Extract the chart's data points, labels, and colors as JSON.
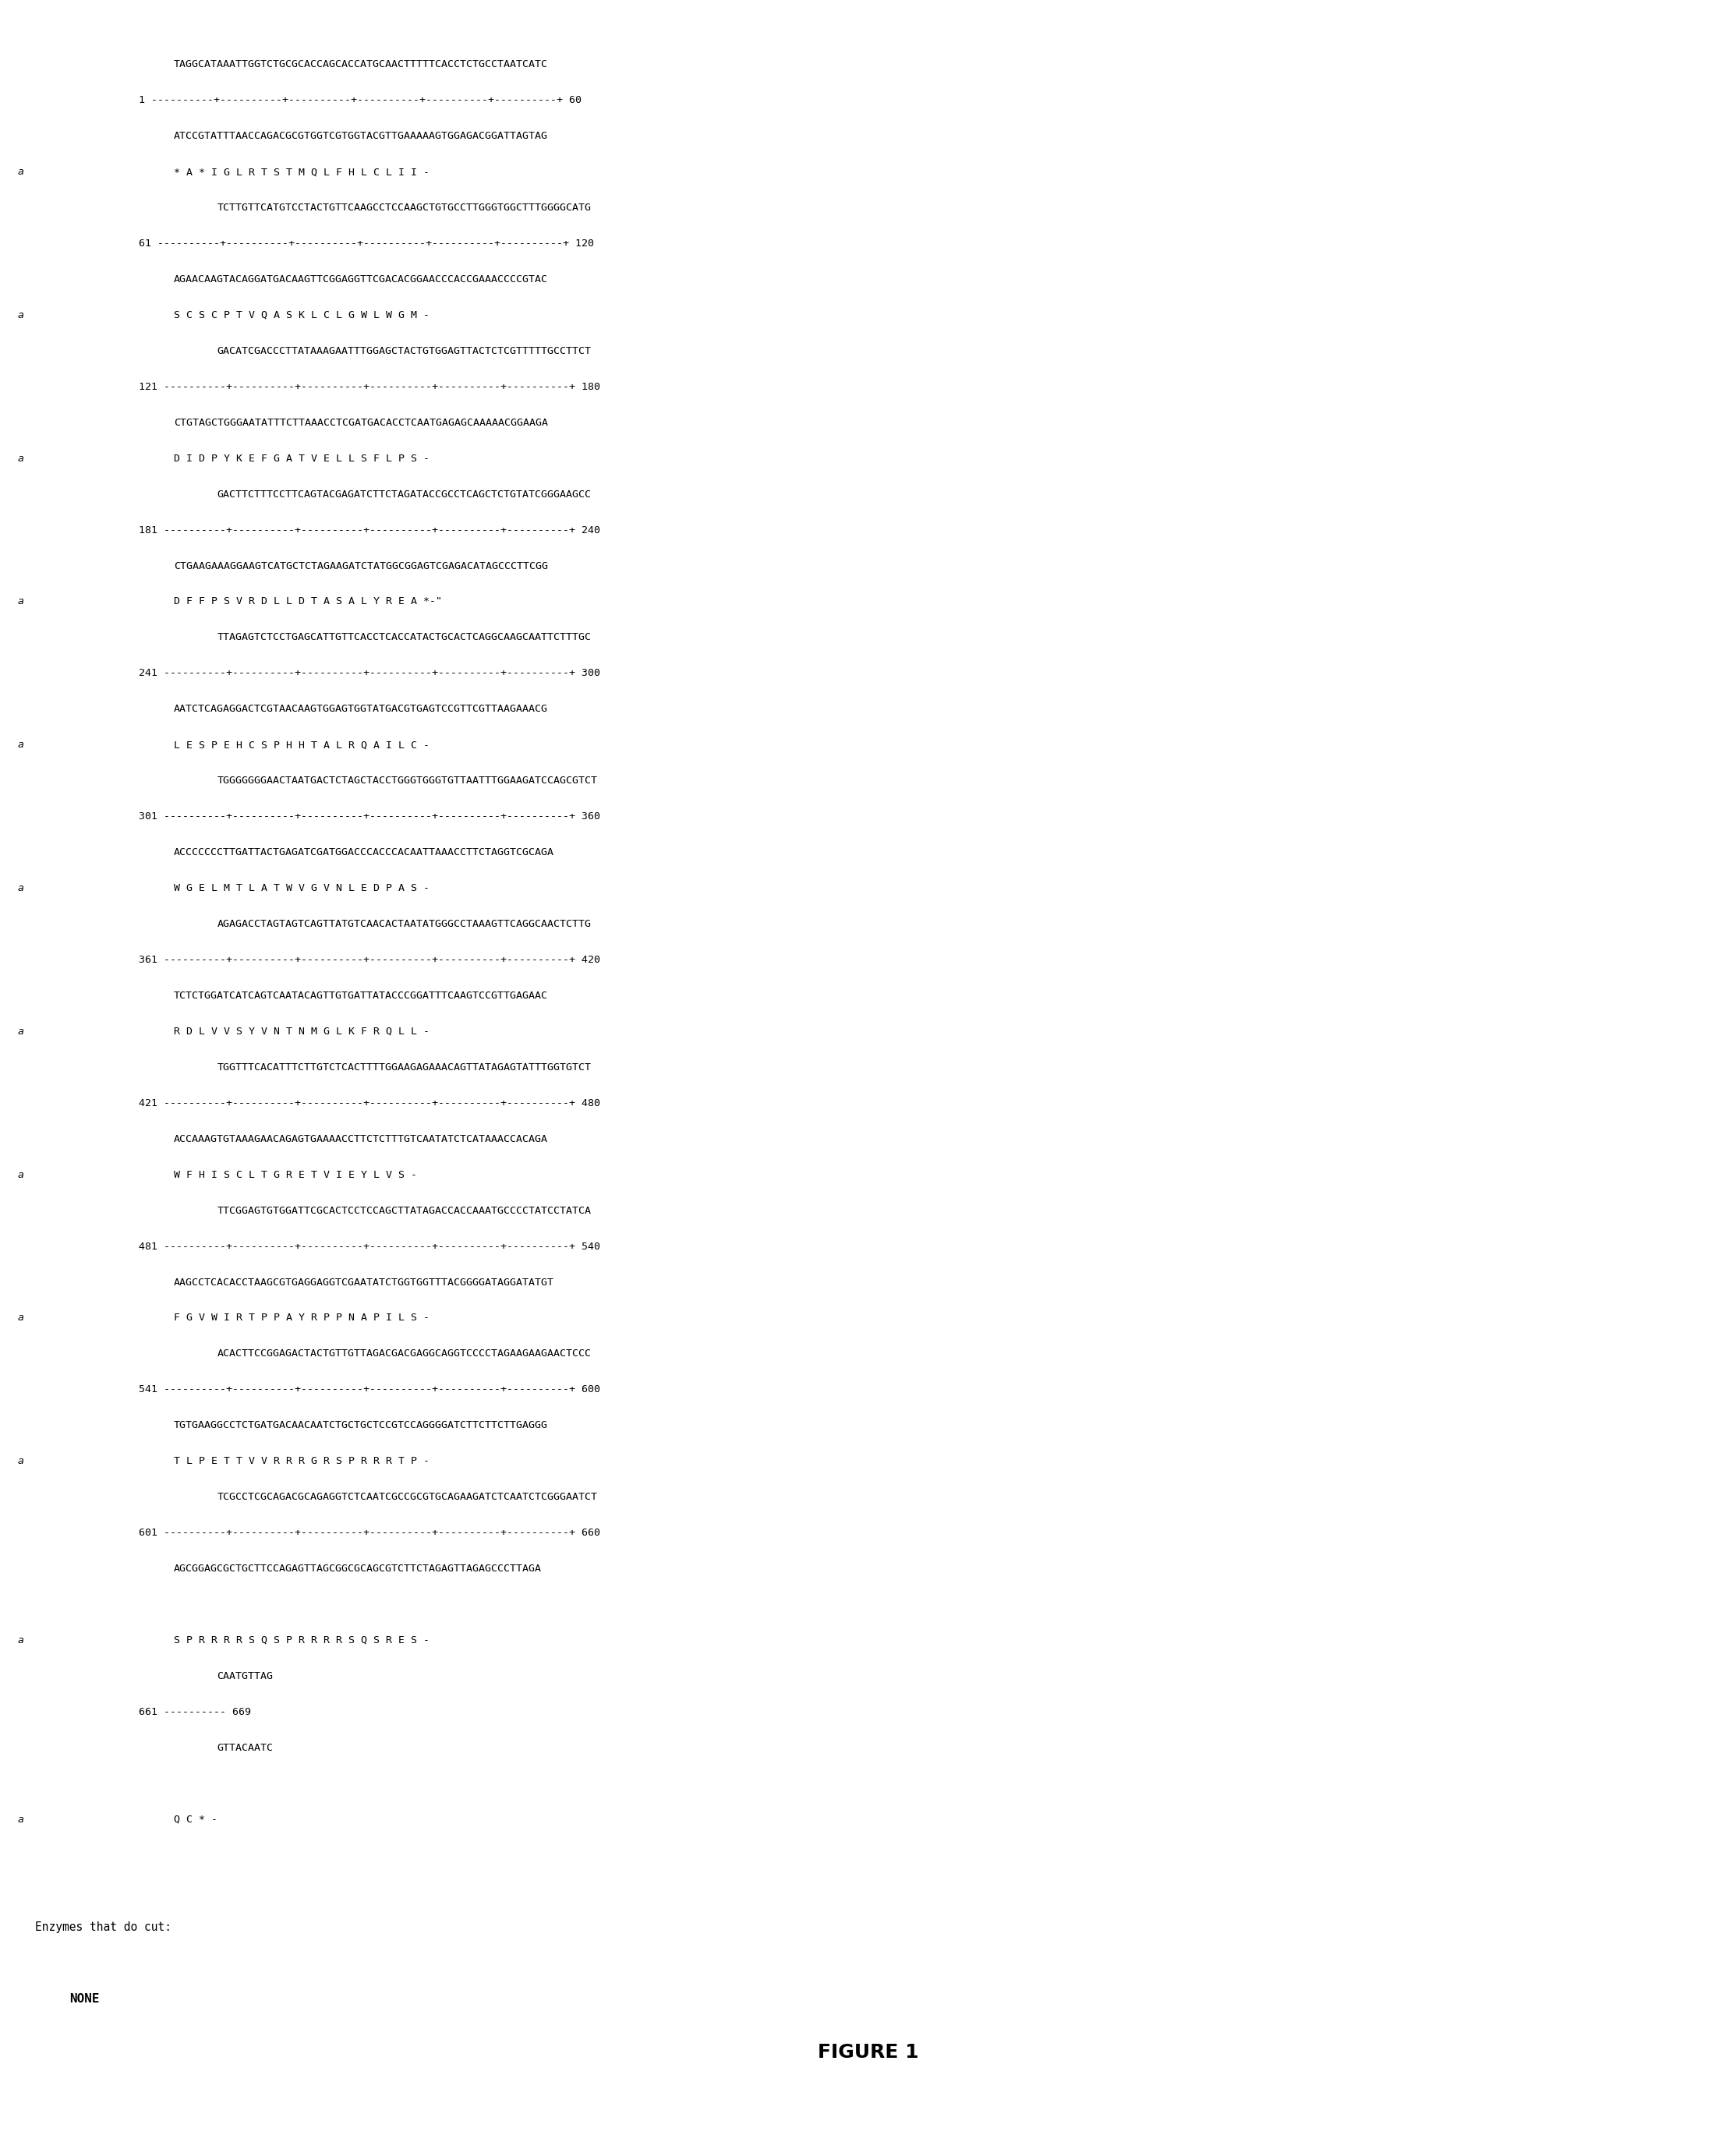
{
  "lines": [
    {
      "type": "dna",
      "text": "TAGGCATAAATTGGTCTGCGCACCAGCACCATGCAACTTTTTCACCTCTGCCTAATCATC"
    },
    {
      "type": "ruler",
      "text": "1 ----------+----------+----------+----------+----------+----------+ 60"
    },
    {
      "type": "dna",
      "text": "ATCCGTATTTAACCAGACGCGTGGTCGTGGTACGTTGAAAAAGTGGAGACGGATTAGTAG"
    },
    {
      "type": "aa",
      "text": "     * A * I G L R T S T M Q L F H L C L I I -"
    },
    {
      "type": "dna",
      "text": "    TCTTGTTCATGTCCTACTGTTCAAGCCTCCAAGCTGTGCCTTGGGTGGCTTTGGGGCATG"
    },
    {
      "type": "ruler",
      "text": "61 ----------+----------+----------+----------+----------+----------+ 120"
    },
    {
      "type": "dna",
      "text": "AGAACAAGTACAGGATGACAAGTTCGGAGGTTCGACACGGAACCCACCGAAACCCCGTAC"
    },
    {
      "type": "aa",
      "text": "     S C S C P T V Q A S K L C L G W L W G M -"
    },
    {
      "type": "dna",
      "text": "    GACATCGACCCTTATAAAGAATTTGGAGCTACTGTGGAGTTACTCTCGTTTTTGCCTTCT"
    },
    {
      "type": "ruler",
      "text": "121 ----------+----------+----------+----------+----------+----------+ 180"
    },
    {
      "type": "dna",
      "text": "CTGTAGCTGGGAATATTTCTTAAACCTCGATGACACCTCAATGAGAGCAAAAACGGAAGA"
    },
    {
      "type": "aa",
      "text": "     D I D P Y K E F G A T V E L L S F L P S -"
    },
    {
      "type": "dna",
      "text": "    GACTTCTTTCCTTCAGTACGAGATCTTCTAGATACCGCCTCAGCTCTGTATCGGGAAGCC"
    },
    {
      "type": "ruler",
      "text": "181 ----------+----------+----------+----------+----------+----------+ 240"
    },
    {
      "type": "dna",
      "text": "CTGAAGAAAGGAAGTCATGCTCTAGAAGATCTATGGCGGAGTCGAGACATAGCCCTTCGG"
    },
    {
      "type": "aa",
      "text": "     D F F P S V R D L L D T A S A L Y R E A *-\""
    },
    {
      "type": "dna",
      "text": "    TTAGAGTCTCCTGAGCATTGTTCACCTCACCATACTGCACTCAGGCAAGCAATTCTTTGC"
    },
    {
      "type": "ruler",
      "text": "241 ----------+----------+----------+----------+----------+----------+ 300"
    },
    {
      "type": "dna",
      "text": "AATCTCAGAGGACTCGTAACAAGTGGAGTGGTATGACGTGAGTCCGTTCGTTAAGAAACG"
    },
    {
      "type": "aa",
      "text": "     L E S P E H C S P H H T A L R Q A I L C -"
    },
    {
      "type": "dna",
      "text": "    TGGGGGGGAACTAATGACTCTAGCTACCTGGGTGGGTGTTAATTTGGAAGATCCAGCGTCT"
    },
    {
      "type": "ruler",
      "text": "301 ----------+----------+----------+----------+----------+----------+ 360"
    },
    {
      "type": "dna",
      "text": "ACCCCCCCTTGATTACTGAGATCGATGGACCCACCCACAATTAAACCTTCTAGGTCGCAGA"
    },
    {
      "type": "aa",
      "text": "     W G E L M T L A T W V G V N L E D P A S -"
    },
    {
      "type": "dna",
      "text": "    AGAGACCTAGTAGTCAGTTATGTCAACACTAATATGGGCCTAAAGTTCAGGCAACTCTTG"
    },
    {
      "type": "ruler",
      "text": "361 ----------+----------+----------+----------+----------+----------+ 420"
    },
    {
      "type": "dna",
      "text": "TCTCTGGATCATCAGTCAATACAGTTGTGATTATACCCGGATTTCAAGTCCGTTGAGAAC"
    },
    {
      "type": "aa",
      "text": "     R D L V V S Y V N T N M G L K F R Q L L -"
    },
    {
      "type": "dna",
      "text": "    TGGTTTCACATTTCTTGTCTCACTTTTGGAAGAGAAACAGTTATAGAGTATTTGGTGTCT"
    },
    {
      "type": "ruler",
      "text": "421 ----------+----------+----------+----------+----------+----------+ 480"
    },
    {
      "type": "dna",
      "text": "ACCAAAGTGTAAAGAACAGAGTGAAAACCTTCTCTTTGTCAATATCTCATAAACCACAGA"
    },
    {
      "type": "aa",
      "text": "     W F H I S C L T G R E T V I E Y L V S -"
    },
    {
      "type": "dna",
      "text": "    TTCGGAGTGTGGATTCGCACTCCTCCAGCTTATAGACCACCAAATGCCCCTATCCTATCA"
    },
    {
      "type": "ruler",
      "text": "481 ----------+----------+----------+----------+----------+----------+ 540"
    },
    {
      "type": "dna",
      "text": "AAGCCTCACACCTAAGCGTGAGGAGGTCGAATATCTGGTGGTTTACGGGGATAGGATATGT"
    },
    {
      "type": "aa",
      "text": "     F G V W I R T P P A Y R P P N A P I L S -"
    },
    {
      "type": "dna",
      "text": "    ACACTTCCGGAGACTACTGTTGTTAGACGACGAGGCAGGTCCCCTAGAAGAAGAACTCCC"
    },
    {
      "type": "ruler",
      "text": "541 ----------+----------+----------+----------+----------+----------+ 600"
    },
    {
      "type": "dna",
      "text": "TGTGAAGGCCTCTGATGACAACAATCTGCTGCTCCGTCCAGGGGATCTTCTTCTTGAGGG"
    },
    {
      "type": "aa",
      "text": "     T L P E T T V V R R R G R S P R R R T P -"
    },
    {
      "type": "dna",
      "text": "    TCGCCTCGCAGACGCAGAGGTCTCAATCGCCGCGTGCAGAAGATCTCAATCTCGGGAATCT"
    },
    {
      "type": "ruler",
      "text": "601 ----------+----------+----------+----------+----------+----------+ 660"
    },
    {
      "type": "dna",
      "text": "AGCGGAGCGCTGCTTCCAGAGTTAGCGGCGCAGCGTCTTCTAGAGTTAGAGCCCTTAGA"
    },
    {
      "type": "blank",
      "text": ""
    },
    {
      "type": "aa",
      "text": "     S P R R R R S Q S P R R R R S Q S R E S -"
    },
    {
      "type": "dna",
      "text": "    CAATGTTAG"
    },
    {
      "type": "ruler",
      "text": "661 ---------- 669"
    },
    {
      "type": "dna",
      "text": "    GTTACAATC"
    },
    {
      "type": "blank",
      "text": ""
    },
    {
      "type": "aa",
      "text": "     Q C * -"
    },
    {
      "type": "blank",
      "text": ""
    },
    {
      "type": "blank",
      "text": ""
    },
    {
      "type": "enzymes",
      "text": "Enzymes that do cut:"
    },
    {
      "type": "blank",
      "text": ""
    },
    {
      "type": "none",
      "text": "  NONE"
    }
  ],
  "figure_label": "FIGURE 1",
  "background_color": "#ffffff",
  "text_color": "#000000",
  "font_size": 9.5,
  "aa_font_size": 9.5,
  "title_font_size": 14,
  "fig_width": 22.27,
  "fig_height": 27.57
}
